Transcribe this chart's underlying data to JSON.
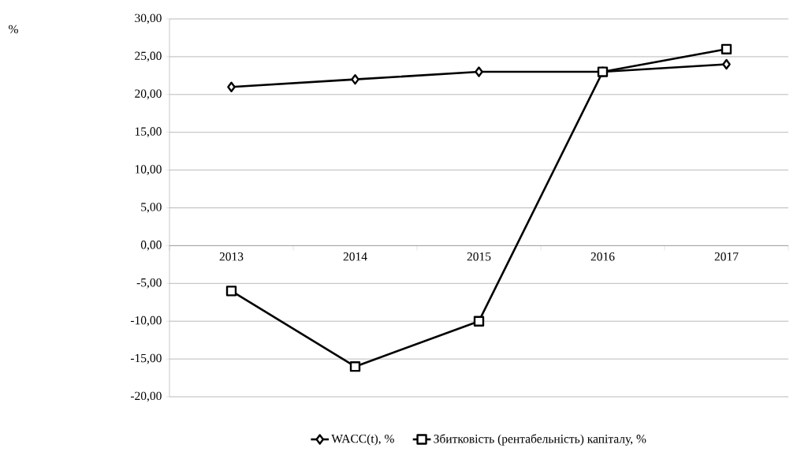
{
  "chart_data": {
    "type": "line",
    "annotations": [
      "%"
    ],
    "categories": [
      "2013",
      "2014",
      "2015",
      "2016",
      "2017"
    ],
    "series": [
      {
        "name": "WACC(t), %",
        "color": "#000000",
        "marker": "diamond",
        "values": [
          21,
          22,
          23,
          23,
          24
        ]
      },
      {
        "name": "Збитковість (рентабельність)  капіталу, %",
        "color": "#000000",
        "marker": "square",
        "values": [
          -6,
          -16,
          -10,
          23,
          26
        ]
      }
    ],
    "ylim": [
      -20,
      30
    ],
    "yticks": [
      {
        "value": -20,
        "label": "-20,00"
      },
      {
        "value": -15,
        "label": "-15,00"
      },
      {
        "value": -10,
        "label": "-10,00"
      },
      {
        "value": -5,
        "label": "-5,00"
      },
      {
        "value": 0,
        "label": "0,00"
      },
      {
        "value": 5,
        "label": "5,00"
      },
      {
        "value": 10,
        "label": "10,00"
      },
      {
        "value": 15,
        "label": "15,00"
      },
      {
        "value": 20,
        "label": "20,00"
      },
      {
        "value": 25,
        "label": "25,00"
      },
      {
        "value": 30,
        "label": "30,00"
      }
    ],
    "grid": "y",
    "legend": "bottom",
    "line_style": "solid"
  }
}
